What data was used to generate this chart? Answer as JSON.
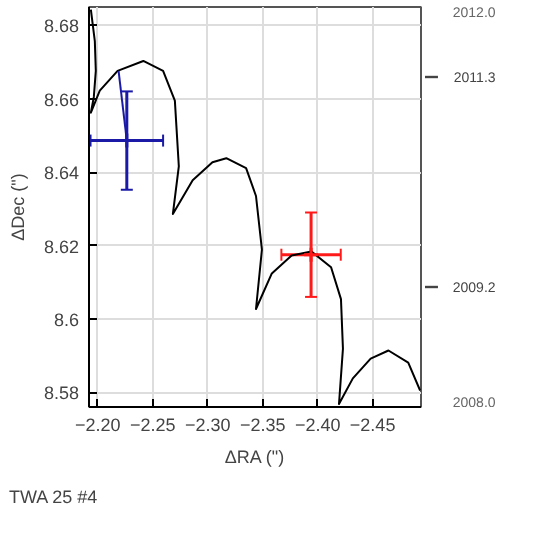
{
  "chart_data": {
    "type": "line",
    "title": "TWA 25 #4",
    "xlabel": "ΔRA (\")",
    "ylabel": "ΔDec (\")",
    "xlim": [
      -2.192,
      -2.494
    ],
    "ylim": [
      8.576,
      8.685
    ],
    "xticks": [
      {
        "value": -2.2,
        "label": "−2.20"
      },
      {
        "value": -2.25,
        "label": "−2.25"
      },
      {
        "value": -2.3,
        "label": "−2.30"
      },
      {
        "value": -2.35,
        "label": "−2.35"
      },
      {
        "value": -2.4,
        "label": "−2.40"
      },
      {
        "value": -2.45,
        "label": "−2.45"
      }
    ],
    "yticks": [
      8.58,
      8.6,
      8.62,
      8.64,
      8.66,
      8.68
    ],
    "y2lim": [
      2008.0,
      2012.0
    ],
    "y2ticks": [
      {
        "value": 2008,
        "label": "2008.0"
      },
      2009.2,
      2011.3,
      {
        "value": 2012,
        "label": "2012.0"
      }
    ],
    "grid": true,
    "series": [
      {
        "color": "#000000",
        "x": [
          -2.1937,
          -2.1973,
          -2.1982,
          -2.1964,
          -2.1937,
          -2.2018,
          -2.218,
          -2.2414,
          -2.2594,
          -2.2701,
          -2.2737,
          -2.2683,
          -2.2863,
          -2.3043,
          -2.3169,
          -2.3349,
          -2.3439,
          -2.3493,
          -2.3439,
          -2.3583,
          -2.3763,
          -2.3942,
          -2.4122,
          -2.4212,
          -2.423,
          -2.4194,
          -2.432,
          -2.4482,
          -2.4644,
          -2.4824,
          -2.4932
        ],
        "values": [
          8.6843,
          8.6757,
          8.6676,
          8.6605,
          8.6562,
          8.6622,
          8.6676,
          8.6703,
          8.6676,
          8.6595,
          8.6416,
          8.6286,
          8.6378,
          8.6427,
          8.6438,
          8.6411,
          8.6335,
          8.6189,
          8.6027,
          8.6124,
          8.6173,
          8.6184,
          8.6141,
          8.6054,
          8.5919,
          8.5768,
          8.5838,
          8.5892,
          8.5914,
          8.5881,
          8.5805
        ]
      },
      {
        "type": "line",
        "color": "#1a1aa6",
        "x": [
          -2.2264,
          -2.2189
        ],
        "values": [
          8.6486,
          8.6676
        ]
      },
      {
        "type": "scatter",
        "marker": "cross",
        "color": "#1a1aa6",
        "x": [
          -2.2264
        ],
        "values": [
          8.6486
        ],
        "errors": [
          0.0134
        ],
        "xerrors": [
          0.033
        ]
      },
      {
        "type": "scatter",
        "marker": "cross",
        "color": "#ff1a1a",
        "x": [
          -2.394
        ],
        "values": [
          8.6175
        ],
        "errors": [
          0.0115
        ],
        "xerrors": [
          0.027
        ]
      }
    ]
  }
}
